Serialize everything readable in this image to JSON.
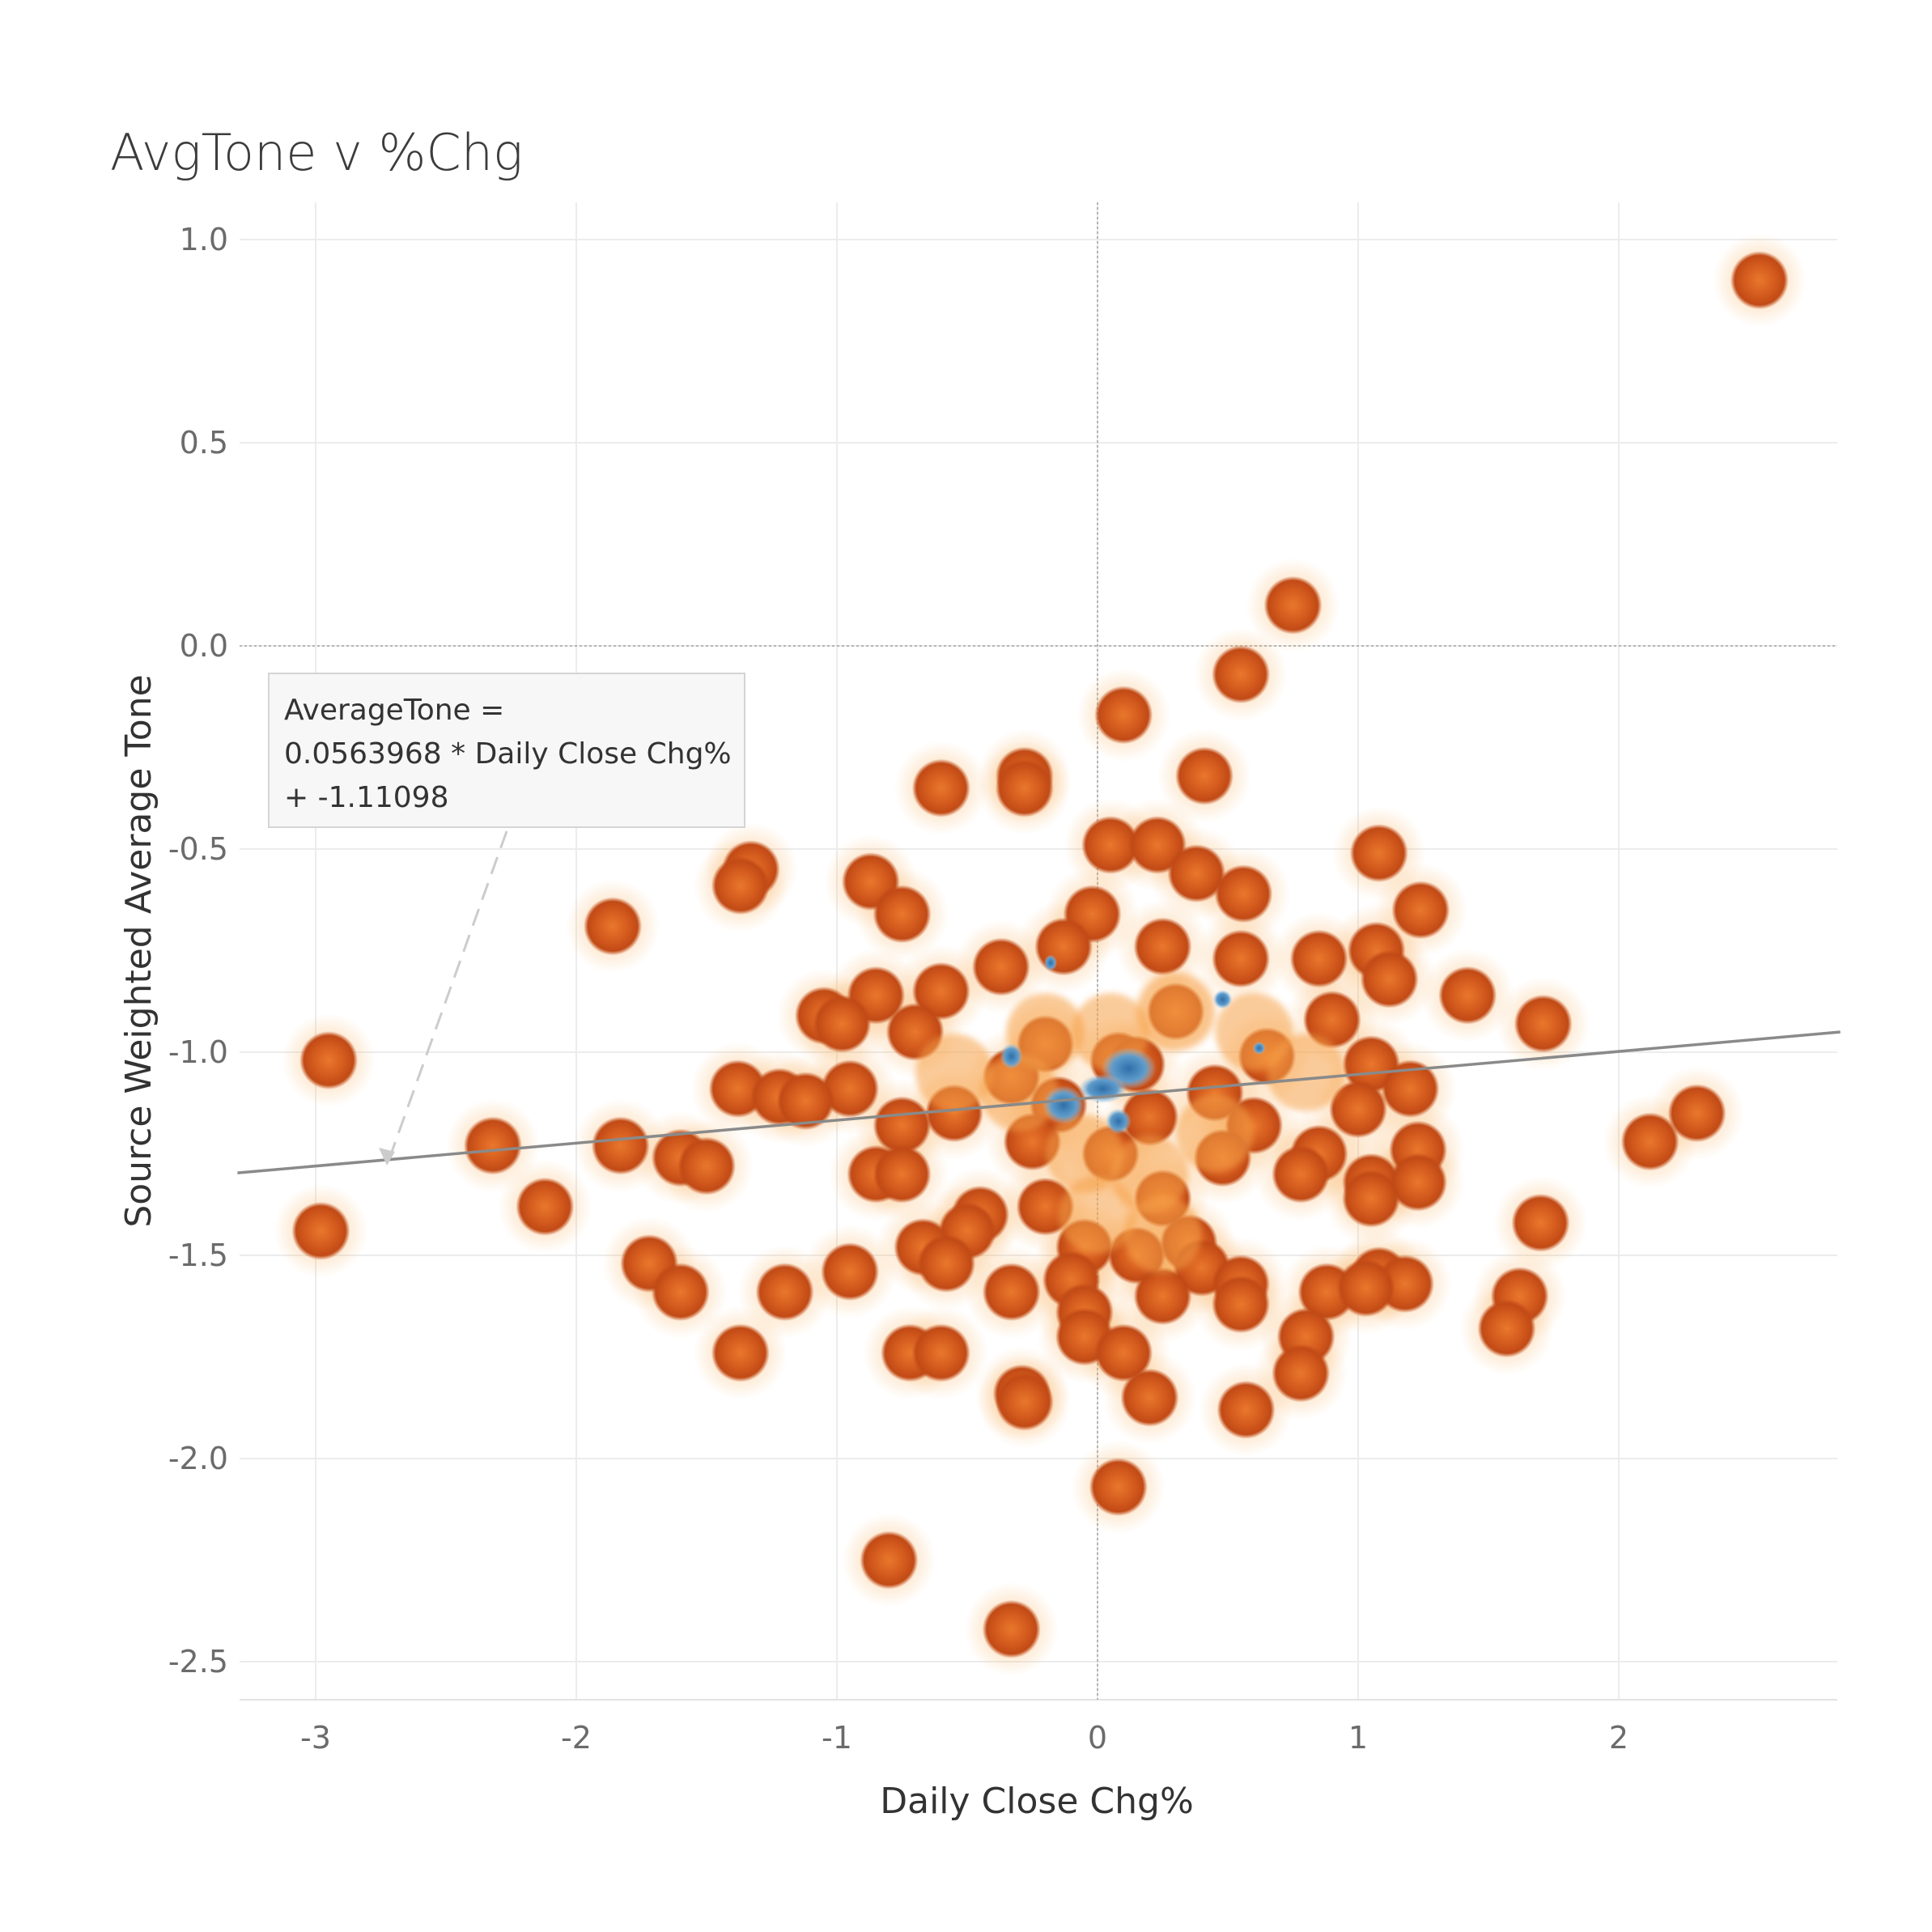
{
  "chart_data": {
    "type": "scatter",
    "title": "AvgTone v %Chg",
    "xlabel": "Daily Close Chg%",
    "ylabel": "Source Weighted Average Tone",
    "xlim": [
      -3.3,
      2.85
    ],
    "ylim": [
      -2.6,
      1.05
    ],
    "x_ticks": [
      -3,
      -2,
      -1,
      0,
      1,
      2
    ],
    "x_tick_labels": [
      "-3",
      "-2",
      "-1",
      "0",
      "1",
      "2"
    ],
    "y_ticks": [
      1.0,
      0.5,
      0.0,
      -0.5,
      -1.0,
      -1.5,
      -2.0,
      -2.5
    ],
    "y_tick_labels": [
      "1.0",
      "0.5",
      "0.0",
      "-0.5",
      "-1.0",
      "-1.5",
      "-2.0",
      "-2.5"
    ],
    "grid": true,
    "trend_line": {
      "slope": 0.0563968,
      "intercept": -1.11098
    },
    "annotation": {
      "lines": [
        "AverageTone =",
        "0.0563968 * Daily Close Chg%",
        "+ -1.11098"
      ]
    },
    "colors": {
      "point": "#c4501a",
      "point_light": "#f59a3d",
      "density_high": "#3f7fb8",
      "trend": "#8a8a8a"
    },
    "points": [
      [
        2.54,
        0.9
      ],
      [
        0.75,
        0.1
      ],
      [
        0.55,
        -0.07
      ],
      [
        0.1,
        -0.17
      ],
      [
        0.41,
        -0.32
      ],
      [
        -0.28,
        -0.32
      ],
      [
        -0.6,
        -0.35
      ],
      [
        -0.28,
        -0.35
      ],
      [
        0.05,
        -0.49
      ],
      [
        0.23,
        -0.49
      ],
      [
        1.08,
        -0.51
      ],
      [
        -1.33,
        -0.55
      ],
      [
        -1.37,
        -0.59
      ],
      [
        -0.87,
        -0.58
      ],
      [
        0.38,
        -0.56
      ],
      [
        0.56,
        -0.61
      ],
      [
        -0.75,
        -0.66
      ],
      [
        1.24,
        -0.65
      ],
      [
        -1.86,
        -0.69
      ],
      [
        -0.02,
        -0.66
      ],
      [
        -0.13,
        -0.74
      ],
      [
        0.25,
        -0.74
      ],
      [
        -0.37,
        -0.79
      ],
      [
        0.55,
        -0.77
      ],
      [
        0.85,
        -0.77
      ],
      [
        1.07,
        -0.75
      ],
      [
        1.12,
        -0.82
      ],
      [
        -0.6,
        -0.85
      ],
      [
        -0.85,
        -0.86
      ],
      [
        1.42,
        -0.86
      ],
      [
        -1.05,
        -0.91
      ],
      [
        -0.98,
        -0.93
      ],
      [
        1.71,
        -0.93
      ],
      [
        -2.95,
        -1.02
      ],
      [
        -0.7,
        -0.95
      ],
      [
        0.3,
        -0.9
      ],
      [
        0.9,
        -0.92
      ],
      [
        -0.2,
        -0.98
      ],
      [
        0.08,
        -1.02
      ],
      [
        0.15,
        -1.03
      ],
      [
        -0.33,
        -1.06
      ],
      [
        0.65,
        -1.01
      ],
      [
        1.05,
        -1.03
      ],
      [
        -1.38,
        -1.09
      ],
      [
        -1.22,
        -1.11
      ],
      [
        -0.95,
        -1.09
      ],
      [
        -1.12,
        -1.12
      ],
      [
        -0.55,
        -1.15
      ],
      [
        0.45,
        -1.1
      ],
      [
        1.2,
        -1.09
      ],
      [
        -0.15,
        -1.13
      ],
      [
        0.2,
        -1.16
      ],
      [
        0.6,
        -1.18
      ],
      [
        1.0,
        -1.14
      ],
      [
        -0.75,
        -1.18
      ],
      [
        2.3,
        -1.15
      ],
      [
        -2.32,
        -1.23
      ],
      [
        -1.83,
        -1.23
      ],
      [
        -1.6,
        -1.26
      ],
      [
        -1.5,
        -1.28
      ],
      [
        0.48,
        -1.26
      ],
      [
        0.85,
        -1.25
      ],
      [
        1.23,
        -1.24
      ],
      [
        2.12,
        -1.22
      ],
      [
        -0.25,
        -1.22
      ],
      [
        0.05,
        -1.25
      ],
      [
        -0.85,
        -1.3
      ],
      [
        -0.75,
        -1.3
      ],
      [
        0.78,
        -1.3
      ],
      [
        1.05,
        -1.32
      ],
      [
        1.23,
        -1.32
      ],
      [
        -2.12,
        -1.38
      ],
      [
        0.25,
        -1.36
      ],
      [
        -0.2,
        -1.38
      ],
      [
        1.05,
        -1.36
      ],
      [
        -0.45,
        -1.4
      ],
      [
        -0.5,
        -1.44
      ],
      [
        1.7,
        -1.42
      ],
      [
        -2.98,
        -1.44
      ],
      [
        0.35,
        -1.47
      ],
      [
        -0.67,
        -1.48
      ],
      [
        -0.58,
        -1.52
      ],
      [
        -0.05,
        -1.48
      ],
      [
        0.15,
        -1.5
      ],
      [
        0.4,
        -1.53
      ],
      [
        -1.72,
        -1.52
      ],
      [
        -0.95,
        -1.54
      ],
      [
        1.08,
        -1.55
      ],
      [
        1.18,
        -1.57
      ],
      [
        -0.1,
        -1.56
      ],
      [
        0.55,
        -1.57
      ],
      [
        -1.6,
        -1.59
      ],
      [
        -1.2,
        -1.59
      ],
      [
        -0.33,
        -1.59
      ],
      [
        0.25,
        -1.6
      ],
      [
        0.88,
        -1.59
      ],
      [
        1.03,
        -1.58
      ],
      [
        1.62,
        -1.6
      ],
      [
        0.55,
        -1.62
      ],
      [
        -0.05,
        -1.64
      ],
      [
        1.57,
        -1.68
      ],
      [
        -0.05,
        -1.7
      ],
      [
        0.8,
        -1.7
      ],
      [
        -0.72,
        -1.74
      ],
      [
        -0.6,
        -1.74
      ],
      [
        -1.37,
        -1.74
      ],
      [
        0.1,
        -1.74
      ],
      [
        0.78,
        -1.79
      ],
      [
        -0.29,
        -1.84
      ],
      [
        -0.28,
        -1.86
      ],
      [
        0.2,
        -1.85
      ],
      [
        0.57,
        -1.88
      ],
      [
        0.08,
        -2.07
      ],
      [
        -0.8,
        -2.25
      ],
      [
        -0.33,
        -2.42
      ]
    ]
  }
}
